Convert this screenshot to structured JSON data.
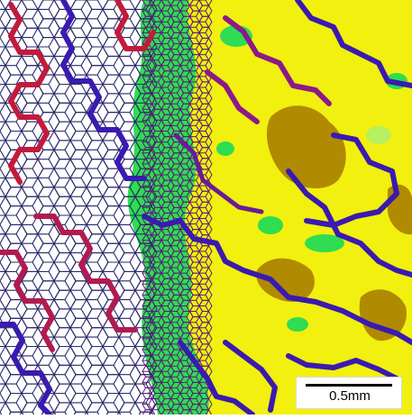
{
  "figure": {
    "scale_bar": {
      "label": "0.5mm"
    },
    "colors": {
      "background_white": "#ffffff",
      "lattice_lines": "#2a2a6a",
      "path_red": "#c21a3c",
      "path_purple": "#8a1a8a",
      "path_blue": "#3a1ab0",
      "surface_green": "#2fdc52",
      "surface_yellow": "#f2f00e",
      "surface_brown": "#b08a00",
      "surface_lightgreen": "#b6f060"
    }
  }
}
